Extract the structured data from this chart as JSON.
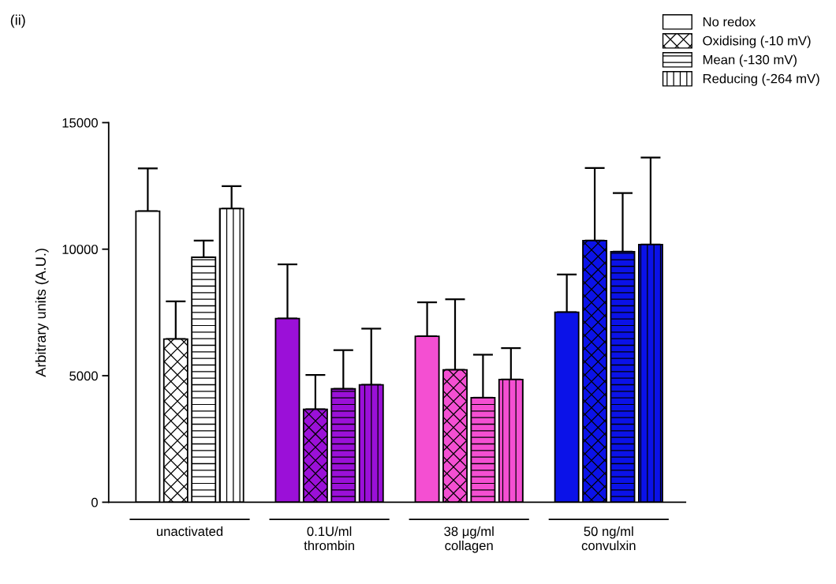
{
  "chart_data": {
    "type": "bar",
    "title": "(ii)",
    "ylabel": "Arbitrary units (A.U.)",
    "categories": [
      "unactivated",
      "0.1U/ml\nthrombin",
      "38 μg/ml\ncollagen",
      "50 ng/ml\nconvulxin"
    ],
    "series": [
      {
        "name": "No redox",
        "colors": [
          "#ffffff",
          "#9b10d8",
          "#f44fd2",
          "#0b12e8"
        ],
        "values": [
          11500,
          7260,
          6560,
          7510
        ],
        "errors": [
          [
            11500,
            13190
          ],
          [
            7260,
            9400
          ],
          [
            6560,
            7900
          ],
          [
            7510,
            9000
          ]
        ]
      },
      {
        "name": "Oxidising (-10 mV)",
        "colors": [
          "#ffffff",
          "#9b10d8",
          "#f44fd2",
          "#0b12e8"
        ],
        "values": [
          6450,
          3670,
          5230,
          10340
        ],
        "errors": [
          [
            6450,
            7940
          ],
          [
            3670,
            5030
          ],
          [
            5230,
            8020
          ],
          [
            10340,
            13210
          ]
        ]
      },
      {
        "name": "Mean (-130 mV)",
        "colors": [
          "#ffffff",
          "#9b10d8",
          "#f44fd2",
          "#0b12e8"
        ],
        "values": [
          9680,
          4480,
          4130,
          9900
        ],
        "errors": [
          [
            9680,
            10340
          ],
          [
            4480,
            6010
          ],
          [
            4130,
            5830
          ],
          [
            9900,
            12220
          ]
        ]
      },
      {
        "name": "Reducing (-264 mV)",
        "colors": [
          "#ffffff",
          "#9b10d8",
          "#f44fd2",
          "#0b12e8"
        ],
        "values": [
          11600,
          4640,
          4850,
          10180
        ],
        "errors": [
          [
            11600,
            12490
          ],
          [
            4640,
            6860
          ],
          [
            4850,
            6090
          ],
          [
            10180,
            13620
          ]
        ]
      }
    ],
    "ylim": [
      0,
      15000
    ],
    "yticks": [
      0,
      5000,
      10000,
      15000
    ],
    "grid": false,
    "legend": "top right"
  }
}
